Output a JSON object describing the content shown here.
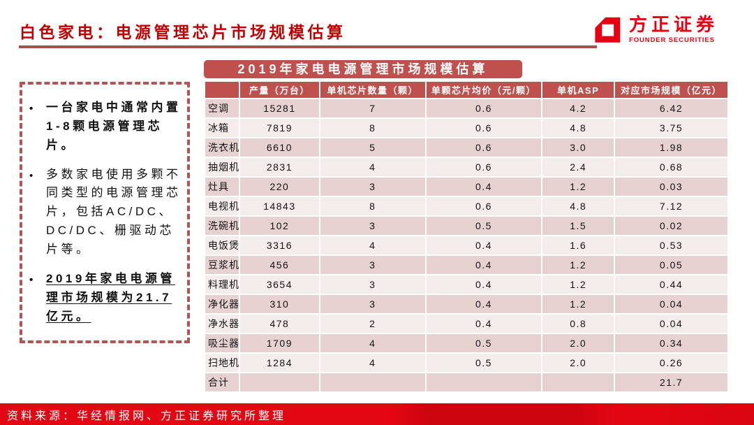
{
  "header": {
    "title": "白色家电：电源管理芯片市场规模估算",
    "logo_cn": "方正证券",
    "logo_en": "FOUNDER SECURITIES"
  },
  "notes": {
    "items": [
      {
        "text": "一台家电中通常内置 1-8颗电源管理芯片。",
        "bold": true,
        "underline": false
      },
      {
        "text": "多数家电使用多颗不同类型的电源管理芯片，包括AC/DC、DC/DC、栅驱动芯片等。",
        "bold": false,
        "underline": false
      },
      {
        "text": "2019年家电电源管理市场规模为21.7亿元。",
        "bold": true,
        "underline": true
      }
    ]
  },
  "table": {
    "title": "2019年家电电源管理市场规模估算",
    "columns": [
      "",
      "产量（万台）",
      "单机芯片数量（颗）",
      "单颗芯片均价（元/颗）",
      "单机ASP",
      "对应市场规模（亿元）"
    ],
    "rows": [
      [
        "空调",
        "15281",
        "7",
        "0.6",
        "4.2",
        "6.42"
      ],
      [
        "冰箱",
        "7819",
        "8",
        "0.6",
        "4.8",
        "3.75"
      ],
      [
        "洗衣机",
        "6610",
        "5",
        "0.6",
        "3.0",
        "1.98"
      ],
      [
        "抽烟机",
        "2831",
        "4",
        "0.6",
        "2.4",
        "0.68"
      ],
      [
        "灶具",
        "220",
        "3",
        "0.4",
        "1.2",
        "0.03"
      ],
      [
        "电视机",
        "14843",
        "8",
        "0.6",
        "4.8",
        "7.12"
      ],
      [
        "洗碗机",
        "102",
        "3",
        "0.5",
        "1.5",
        "0.02"
      ],
      [
        "电饭煲",
        "3316",
        "4",
        "0.4",
        "1.6",
        "0.53"
      ],
      [
        "豆浆机",
        "456",
        "3",
        "0.4",
        "1.2",
        "0.05"
      ],
      [
        "料理机",
        "3654",
        "3",
        "0.4",
        "1.2",
        "0.44"
      ],
      [
        "净化器",
        "310",
        "3",
        "0.4",
        "1.2",
        "0.04"
      ],
      [
        "净水器",
        "478",
        "2",
        "0.4",
        "0.8",
        "0.04"
      ],
      [
        "吸尘器",
        "1709",
        "4",
        "0.5",
        "2.0",
        "0.34"
      ],
      [
        "扫地机",
        "1284",
        "4",
        "0.5",
        "2.0",
        "0.26"
      ],
      [
        "合计",
        "",
        "",
        "",
        "",
        "21.7"
      ]
    ]
  },
  "chart_data": {
    "type": "table",
    "title": "2019年家电电源管理市场规模估算",
    "columns": [
      "产量（万台）",
      "单机芯片数量（颗）",
      "单颗芯片均价（元/颗）",
      "单机ASP",
      "对应市场规模（亿元）"
    ],
    "categories": [
      "空调",
      "冰箱",
      "洗衣机",
      "抽烟机",
      "灶具",
      "电视机",
      "洗碗机",
      "电饭煲",
      "豆浆机",
      "料理机",
      "净化器",
      "净水器",
      "吸尘器",
      "扫地机",
      "合计"
    ],
    "values": [
      [
        15281,
        7,
        0.6,
        4.2,
        6.42
      ],
      [
        7819,
        8,
        0.6,
        4.8,
        3.75
      ],
      [
        6610,
        5,
        0.6,
        3.0,
        1.98
      ],
      [
        2831,
        4,
        0.6,
        2.4,
        0.68
      ],
      [
        220,
        3,
        0.4,
        1.2,
        0.03
      ],
      [
        14843,
        8,
        0.6,
        4.8,
        7.12
      ],
      [
        102,
        3,
        0.5,
        1.5,
        0.02
      ],
      [
        3316,
        4,
        0.4,
        1.6,
        0.53
      ],
      [
        456,
        3,
        0.4,
        1.2,
        0.05
      ],
      [
        3654,
        3,
        0.4,
        1.2,
        0.44
      ],
      [
        310,
        3,
        0.4,
        1.2,
        0.04
      ],
      [
        478,
        2,
        0.4,
        0.8,
        0.04
      ],
      [
        1709,
        4,
        0.5,
        2.0,
        0.34
      ],
      [
        1284,
        4,
        0.5,
        2.0,
        0.26
      ],
      [
        null,
        null,
        null,
        null,
        21.7
      ]
    ]
  },
  "footer": {
    "source": "资料来源：华经情报网、方正证券研究所整理"
  },
  "colors": {
    "title_red": "#c00000",
    "accent_red": "#c0504d",
    "brand_red": "#e60012",
    "row_odd": "#e7d2d1",
    "row_even": "#f5edec",
    "footer_red": "#e30613",
    "underline_red": "#a4504c",
    "note_border_red": "#b4534f"
  }
}
